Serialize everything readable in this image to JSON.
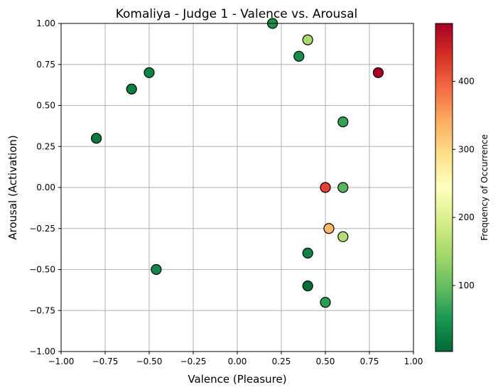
{
  "chart_data": {
    "type": "scatter",
    "title": "Komaliya - Judge 1 - Valence vs. Arousal",
    "xlabel": "Valence (Pleasure)",
    "ylabel": "Arousal (Activation)",
    "xlim": [
      -1.0,
      1.0
    ],
    "ylim": [
      -1.0,
      1.0
    ],
    "xticks": [
      "−1.00",
      "−0.75",
      "−0.50",
      "−0.25",
      "0.00",
      "0.25",
      "0.50",
      "0.75",
      "1.00"
    ],
    "yticks": [
      "−1.00",
      "−0.75",
      "−0.50",
      "−0.25",
      "0.00",
      "0.25",
      "0.50",
      "0.75",
      "1.00"
    ],
    "grid": true,
    "colormap": "RdYlGn_r",
    "colorbar": {
      "label": "Frequency of Occurrence",
      "min": 3,
      "max": 485,
      "ticks": [
        100,
        200,
        300,
        400
      ]
    },
    "points": [
      {
        "x": 0.2,
        "y": 1.0,
        "freq": 45
      },
      {
        "x": 0.4,
        "y": 0.9,
        "freq": 150
      },
      {
        "x": 0.35,
        "y": 0.8,
        "freq": 40
      },
      {
        "x": 0.8,
        "y": 0.7,
        "freq": 485
      },
      {
        "x": -0.5,
        "y": 0.7,
        "freq": 30
      },
      {
        "x": -0.6,
        "y": 0.6,
        "freq": 25
      },
      {
        "x": 0.6,
        "y": 0.4,
        "freq": 65
      },
      {
        "x": -0.8,
        "y": 0.3,
        "freq": 20
      },
      {
        "x": 0.5,
        "y": 0.0,
        "freq": 420
      },
      {
        "x": 0.6,
        "y": 0.0,
        "freq": 90
      },
      {
        "x": 0.52,
        "y": -0.25,
        "freq": 330
      },
      {
        "x": 0.6,
        "y": -0.3,
        "freq": 160
      },
      {
        "x": 0.4,
        "y": -0.4,
        "freq": 30
      },
      {
        "x": -0.46,
        "y": -0.5,
        "freq": 35
      },
      {
        "x": 0.4,
        "y": -0.6,
        "freq": 10
      },
      {
        "x": 0.5,
        "y": -0.7,
        "freq": 60
      }
    ],
    "colors": {
      "marker_edge": "#000000",
      "grid": "#b0b0b0"
    }
  }
}
